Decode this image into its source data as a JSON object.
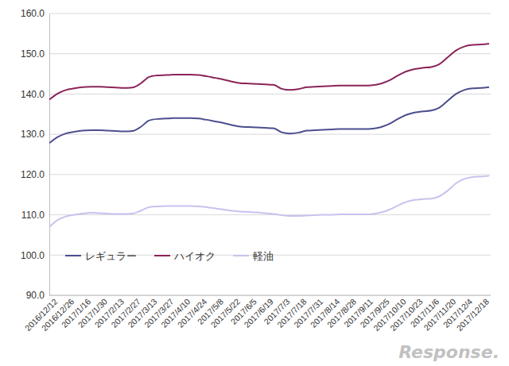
{
  "chart_data": {
    "type": "line",
    "categories": [
      "2016/12/12",
      null,
      "2016/12/26",
      null,
      "2017/1/16",
      null,
      "2017/1/30",
      null,
      "2017/2/13",
      null,
      "2017/2/27",
      null,
      "2017/3/13",
      null,
      "2017/3/27",
      null,
      "2017/4/10",
      null,
      "2017/4/24",
      null,
      "2017/5/8",
      null,
      "2017/5/22",
      null,
      "2017/6/5",
      null,
      "2017/6/19",
      null,
      "2017/7/3",
      null,
      "2017/7/18",
      null,
      "2017/7/31",
      null,
      "2017/8/14",
      null,
      "2017/8/28",
      null,
      "2017/9/11",
      null,
      "2017/9/25",
      null,
      "2017/10/10",
      null,
      "2017/10/23",
      null,
      "2017/11/6",
      null,
      "2017/11/20",
      null,
      "2017/12/4",
      null,
      "2017/12/18",
      null
    ],
    "series": [
      {
        "name": "レギュラー",
        "color": "#4b4e8e",
        "values": [
          127.8,
          129.3,
          130.2,
          130.6,
          130.9,
          131.0,
          131.0,
          130.9,
          130.8,
          130.7,
          130.8,
          131.8,
          133.4,
          133.8,
          133.9,
          134.0,
          134.0,
          134.0,
          133.9,
          133.6,
          133.2,
          132.8,
          132.3,
          131.9,
          131.8,
          131.7,
          131.6,
          131.5,
          130.5,
          130.2,
          130.4,
          130.9,
          131.0,
          131.1,
          131.2,
          131.3,
          131.3,
          131.3,
          131.3,
          131.4,
          131.8,
          132.6,
          133.8,
          134.8,
          135.4,
          135.7,
          135.9,
          136.6,
          138.3,
          140.0,
          141.0,
          141.4,
          141.5,
          141.7
        ]
      },
      {
        "name": "ハイオク",
        "color": "#8b2458",
        "values": [
          138.6,
          140.1,
          141.0,
          141.4,
          141.7,
          141.8,
          141.8,
          141.7,
          141.6,
          141.5,
          141.6,
          142.6,
          144.2,
          144.6,
          144.7,
          144.8,
          144.8,
          144.8,
          144.7,
          144.4,
          144.0,
          143.6,
          143.1,
          142.7,
          142.6,
          142.5,
          142.4,
          142.3,
          141.3,
          141.0,
          141.2,
          141.7,
          141.8,
          141.9,
          142.0,
          142.1,
          142.1,
          142.1,
          142.1,
          142.2,
          142.6,
          143.4,
          144.6,
          145.6,
          146.2,
          146.5,
          146.7,
          147.4,
          149.1,
          150.8,
          151.8,
          152.2,
          152.3,
          152.5
        ]
      },
      {
        "name": "軽油",
        "color": "#c6c3ee",
        "values": [
          107.0,
          108.7,
          109.6,
          110.0,
          110.3,
          110.5,
          110.4,
          110.3,
          110.2,
          110.2,
          110.3,
          111.0,
          111.9,
          112.1,
          112.2,
          112.2,
          112.2,
          112.2,
          112.1,
          111.9,
          111.6,
          111.3,
          111.0,
          110.8,
          110.7,
          110.6,
          110.4,
          110.2,
          109.9,
          109.7,
          109.7,
          109.8,
          109.9,
          110.0,
          110.0,
          110.1,
          110.1,
          110.1,
          110.1,
          110.2,
          110.6,
          111.3,
          112.3,
          113.2,
          113.7,
          113.9,
          114.0,
          114.6,
          116.0,
          117.8,
          118.9,
          119.4,
          119.5,
          119.7
        ]
      }
    ],
    "ylim": [
      90,
      160
    ],
    "yticks": [
      {
        "value": 90,
        "label": "90.0"
      },
      {
        "value": 100,
        "label": "100.0"
      },
      {
        "value": 110,
        "label": "110.0"
      },
      {
        "value": 120,
        "label": "120.0"
      },
      {
        "value": 130,
        "label": "130.0"
      },
      {
        "value": 140,
        "label": "140.0"
      },
      {
        "value": 150,
        "label": "150.0"
      },
      {
        "value": 160,
        "label": "160.0"
      }
    ],
    "grid": true,
    "legend": "lower left",
    "annotations": [
      {
        "text": "Response."
      }
    ]
  }
}
